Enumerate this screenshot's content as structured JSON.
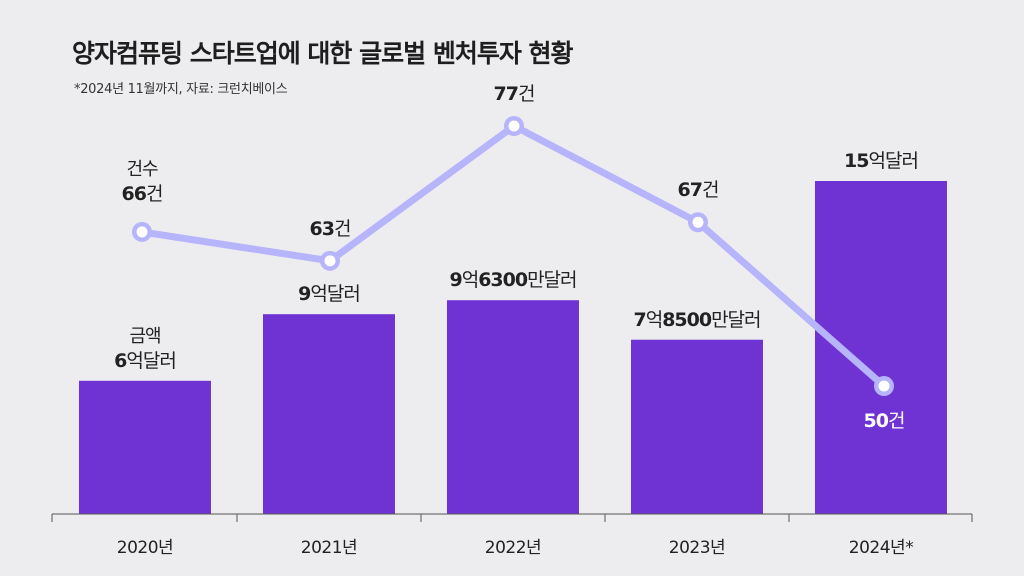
{
  "title": "양자컴퓨팅 스타트업에 대한 글로벌 벤처투자 현황",
  "note": "*2024년 11월까지, 자료: 크런치베이스",
  "colors": {
    "bar": "#7033d3",
    "line": "#b6b4fb",
    "background": "#ededf0"
  },
  "chart_data": {
    "type": "bar+line",
    "title": "양자컴퓨팅 스타트업에 대한 글로벌 벤처투자 현황",
    "categories": [
      "2020년",
      "2021년",
      "2022년",
      "2023년",
      "2024년*"
    ],
    "series": [
      {
        "name": "금액",
        "unit": "억달러",
        "type": "bar",
        "values": [
          6,
          9,
          9.63,
          7.85,
          15
        ],
        "labels": [
          [
            "6",
            "억달러"
          ],
          [
            "9",
            "억달러"
          ],
          [
            "9",
            "억",
            "6300",
            "만달러"
          ],
          [
            "7",
            "억",
            "8500",
            "만달러"
          ],
          [
            "15",
            "억달러"
          ]
        ]
      },
      {
        "name": "건수",
        "unit": "건",
        "type": "line",
        "values": [
          66,
          63,
          77,
          67,
          50
        ],
        "labels": [
          [
            "66",
            "건"
          ],
          [
            "63",
            "건"
          ],
          [
            "77",
            "건"
          ],
          [
            "67",
            "건"
          ],
          [
            "50",
            "건"
          ]
        ]
      }
    ],
    "legend": "inline labels on first category"
  }
}
